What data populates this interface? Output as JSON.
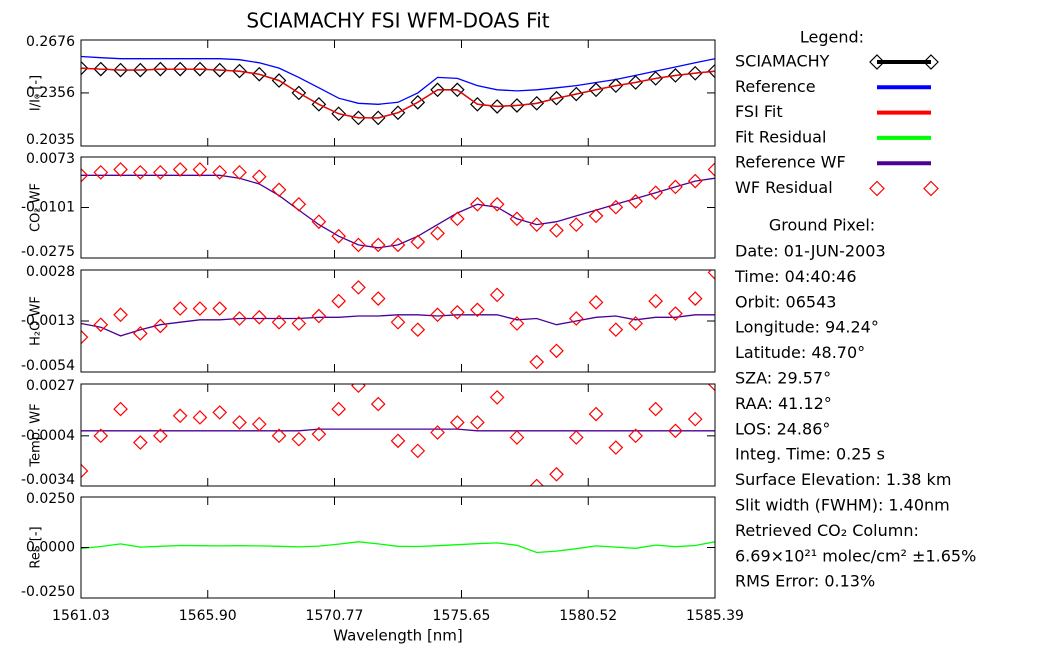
{
  "title": "SCIAMACHY FSI WFM-DOAS Fit",
  "legend": {
    "title": "Legend:",
    "entries": [
      {
        "name": "SCIAMACHY",
        "color": "#000000",
        "marker": "diamond-line"
      },
      {
        "name": "Reference",
        "color": "#0000ff",
        "marker": "line"
      },
      {
        "name": "FSI Fit",
        "color": "#ff0000",
        "marker": "line"
      },
      {
        "name": "Fit Residual",
        "color": "#00ff00",
        "marker": "line"
      },
      {
        "name": "Reference WF",
        "color": "#4b0096",
        "marker": "line"
      },
      {
        "name": "WF Residual",
        "color": "#ff0000",
        "marker": "diamonds"
      }
    ]
  },
  "info": {
    "title": "Ground Pixel:",
    "lines": [
      "Date: 01-JUN-2003",
      "Time: 04:40:46",
      "Orbit: 06543",
      "Longitude: 94.24°",
      "Latitude: 48.70°",
      "SZA: 29.57°",
      "RAA: 41.12°",
      "LOS: 24.86°",
      "Integ. Time: 0.25 s",
      "Surface Elevation: 1.38 km",
      "Slit width (FWHM): 1.40nm",
      "Retrieved CO₂ Column:",
      "6.69×10²¹ molec/cm² ±1.65%",
      "RMS Error: 0.13%"
    ]
  },
  "chart_data": [
    {
      "type": "line",
      "ylabel": "I/I₀ [-]",
      "xlim": [
        1561.03,
        1585.39
      ],
      "ylim": [
        0.2035,
        0.2676
      ],
      "yticks": [
        0.2035,
        0.2356,
        0.2676
      ],
      "x": [
        1561.03,
        1561.79,
        1562.55,
        1563.31,
        1564.08,
        1564.84,
        1565.6,
        1566.36,
        1567.12,
        1567.88,
        1568.64,
        1569.4,
        1570.17,
        1570.93,
        1571.69,
        1572.45,
        1573.21,
        1573.97,
        1574.73,
        1575.49,
        1576.26,
        1577.02,
        1577.78,
        1578.54,
        1579.3,
        1580.06,
        1580.82,
        1581.58,
        1582.34,
        1583.11,
        1583.87,
        1584.63,
        1585.39
      ],
      "series": [
        {
          "color": "#0000ff",
          "line": true,
          "values": [
            0.2576,
            0.2569,
            0.2563,
            0.2563,
            0.2563,
            0.2563,
            0.2563,
            0.2563,
            0.2557,
            0.2538,
            0.2506,
            0.245,
            0.2387,
            0.2324,
            0.2293,
            0.2287,
            0.2299,
            0.2356,
            0.245,
            0.2444,
            0.24,
            0.2375,
            0.2368,
            0.2375,
            0.2387,
            0.24,
            0.2419,
            0.2437,
            0.2462,
            0.2488,
            0.2513,
            0.2538,
            0.2563
          ]
        },
        {
          "color": "#000000",
          "line": true,
          "marker": "diamond",
          "values": [
            0.2506,
            0.25,
            0.2494,
            0.2494,
            0.25,
            0.25,
            0.25,
            0.2494,
            0.2488,
            0.2469,
            0.2431,
            0.2356,
            0.2287,
            0.223,
            0.2205,
            0.2205,
            0.2236,
            0.2299,
            0.2375,
            0.2375,
            0.2287,
            0.2274,
            0.228,
            0.2293,
            0.2324,
            0.2349,
            0.2375,
            0.24,
            0.2419,
            0.2444,
            0.2462,
            0.2475,
            0.2488
          ]
        },
        {
          "color": "#ff0000",
          "line": true,
          "values": [
            0.2505,
            0.25,
            0.2495,
            0.2495,
            0.2499,
            0.25,
            0.2499,
            0.2495,
            0.2487,
            0.2468,
            0.243,
            0.2357,
            0.2286,
            0.2231,
            0.2206,
            0.2204,
            0.2237,
            0.23,
            0.2374,
            0.2373,
            0.2288,
            0.2275,
            0.2281,
            0.2292,
            0.2323,
            0.235,
            0.2376,
            0.2399,
            0.242,
            0.2443,
            0.2461,
            0.2476,
            0.2487
          ]
        }
      ]
    },
    {
      "type": "line",
      "ylabel": "CO₂ WF",
      "xlim": [
        1561.03,
        1585.39
      ],
      "ylim": [
        -0.0275,
        0.0073
      ],
      "yticks": [
        -0.0275,
        -0.0101,
        0.0073
      ],
      "x": [
        1561.03,
        1561.79,
        1562.55,
        1563.31,
        1564.08,
        1564.84,
        1565.6,
        1566.36,
        1567.12,
        1567.88,
        1568.64,
        1569.4,
        1570.17,
        1570.93,
        1571.69,
        1572.45,
        1573.21,
        1573.97,
        1574.73,
        1575.49,
        1576.26,
        1577.02,
        1577.78,
        1578.54,
        1579.3,
        1580.06,
        1580.82,
        1581.58,
        1582.34,
        1583.11,
        1583.87,
        1584.63,
        1585.39
      ],
      "series": [
        {
          "color": "#4b0096",
          "line": true,
          "values": [
            0.001,
            0.001,
            0.001,
            0.001,
            0.001,
            0.001,
            0.001,
            0.001,
            0.0,
            -0.002,
            -0.006,
            -0.011,
            -0.016,
            -0.02,
            -0.023,
            -0.024,
            -0.023,
            -0.02,
            -0.016,
            -0.012,
            -0.009,
            -0.01,
            -0.014,
            -0.016,
            -0.015,
            -0.013,
            -0.011,
            -0.009,
            -0.007,
            -0.005,
            -0.003,
            -0.001,
            0.0
          ]
        },
        {
          "color": "#ff0000",
          "marker": "diamond",
          "values": [
            0.001,
            0.002,
            0.003,
            0.002,
            0.002,
            0.003,
            0.003,
            0.002,
            0.002,
            0.0005,
            -0.004,
            -0.009,
            -0.015,
            -0.02,
            -0.023,
            -0.023,
            -0.023,
            -0.022,
            -0.019,
            -0.014,
            -0.009,
            -0.009,
            -0.014,
            -0.016,
            -0.018,
            -0.016,
            -0.013,
            -0.01,
            -0.008,
            -0.005,
            -0.003,
            -0.001,
            0.003
          ]
        }
      ]
    },
    {
      "type": "line",
      "ylabel": "H₂O WF",
      "xlim": [
        1561.03,
        1585.39
      ],
      "ylim": [
        -0.0054,
        0.0028
      ],
      "yticks": [
        -0.0054,
        -0.0013,
        0.0028
      ],
      "x": [
        1561.03,
        1561.79,
        1562.55,
        1563.31,
        1564.08,
        1564.84,
        1565.6,
        1566.36,
        1567.12,
        1567.88,
        1568.64,
        1569.4,
        1570.17,
        1570.93,
        1571.69,
        1572.45,
        1573.21,
        1573.97,
        1574.73,
        1575.49,
        1576.26,
        1577.02,
        1577.78,
        1578.54,
        1579.3,
        1580.06,
        1580.82,
        1581.58,
        1582.34,
        1583.11,
        1583.87,
        1584.63,
        1585.39
      ],
      "series": [
        {
          "color": "#4b0096",
          "line": true,
          "values": [
            -0.0015,
            -0.0018,
            -0.0025,
            -0.002,
            -0.0016,
            -0.0014,
            -0.0012,
            -0.0012,
            -0.0011,
            -0.0011,
            -0.0011,
            -0.0011,
            -0.001,
            -0.001,
            -0.0009,
            -0.0009,
            -0.0008,
            -0.0008,
            -0.0009,
            -0.0008,
            -0.0008,
            -0.0008,
            -0.0012,
            -0.0011,
            -0.0016,
            -0.0013,
            -0.001,
            -0.0009,
            -0.0012,
            -0.001,
            -0.001,
            -0.0008,
            -0.0008
          ]
        },
        {
          "color": "#ff0000",
          "marker": "diamond",
          "values": [
            -0.0026,
            -0.0016,
            -0.0008,
            -0.0023,
            -0.0017,
            -0.0003,
            -0.0003,
            -0.0003,
            -0.0011,
            -0.001,
            -0.0014,
            -0.0015,
            -0.0009,
            0.0003,
            0.0014,
            0.0005,
            -0.0014,
            -0.002,
            -0.0008,
            -0.0006,
            -0.0004,
            0.0008,
            -0.0015,
            -0.0046,
            -0.0037,
            -0.0011,
            0.0002,
            -0.002,
            -0.0015,
            0.0003,
            -0.0007,
            0.0005,
            0.0026
          ]
        }
      ]
    },
    {
      "type": "line",
      "ylabel": "Temp. WF",
      "xlim": [
        1561.03,
        1585.39
      ],
      "ylim": [
        -0.0034,
        0.0027
      ],
      "yticks": [
        -0.0034,
        -0.0004,
        0.0027
      ],
      "x": [
        1561.03,
        1561.79,
        1562.55,
        1563.31,
        1564.08,
        1564.84,
        1565.6,
        1566.36,
        1567.12,
        1567.88,
        1568.64,
        1569.4,
        1570.17,
        1570.93,
        1571.69,
        1572.45,
        1573.21,
        1573.97,
        1574.73,
        1575.49,
        1576.26,
        1577.02,
        1577.78,
        1578.54,
        1579.3,
        1580.06,
        1580.82,
        1581.58,
        1582.34,
        1583.11,
        1583.87,
        1584.63,
        1585.39
      ],
      "series": [
        {
          "color": "#4b0096",
          "line": true,
          "values": [
            -0.0001,
            -0.0001,
            -0.0001,
            -0.0001,
            -0.0001,
            -0.0001,
            -0.0001,
            -0.0001,
            -0.0001,
            -0.0001,
            -0.0001,
            -0.0001,
            0.0,
            0.0,
            0.0,
            0.0,
            0.0,
            0.0,
            0.0,
            0.0,
            -0.0001,
            -0.0001,
            -0.0001,
            -0.0001,
            -0.0001,
            -0.0001,
            -0.0001,
            -0.0001,
            -0.0001,
            -0.0001,
            -0.0001,
            -0.0001,
            -0.0001
          ]
        },
        {
          "color": "#ff0000",
          "marker": "diamond",
          "values": [
            -0.0025,
            -0.0004,
            0.0012,
            -0.0008,
            -0.0004,
            0.0008,
            0.0007,
            0.001,
            0.0004,
            0.0003,
            -0.0004,
            -0.0006,
            -0.0003,
            0.0012,
            0.0026,
            0.0015,
            -0.0007,
            -0.0013,
            -0.0002,
            0.0004,
            0.0004,
            0.0019,
            -0.0005,
            -0.0034,
            -0.0027,
            -0.0005,
            0.0009,
            -0.0011,
            -0.0004,
            0.0012,
            -0.0001,
            0.0006,
            0.0027
          ]
        }
      ]
    },
    {
      "type": "line",
      "ylabel": "Res [-]",
      "xlabel": "Wavelength [nm]",
      "xlim": [
        1561.03,
        1585.39
      ],
      "ylim": [
        -0.025,
        0.025
      ],
      "yticks": [
        {
          "value": -0.025,
          "label": "-0.0250"
        },
        {
          "value": 0,
          "label": "0.0000"
        },
        {
          "value": 0.025,
          "label": "0.0250"
        }
      ],
      "xticks": [
        1561.03,
        {
          "value": 1565.9,
          "label": "1565.90"
        },
        1570.77,
        1575.65,
        1580.52,
        1585.39
      ],
      "x": [
        1561.03,
        1561.79,
        1562.55,
        1563.31,
        1564.08,
        1564.84,
        1565.6,
        1566.36,
        1567.12,
        1567.88,
        1568.64,
        1569.4,
        1570.17,
        1570.93,
        1571.69,
        1572.45,
        1573.21,
        1573.97,
        1574.73,
        1575.49,
        1576.26,
        1577.02,
        1577.78,
        1578.54,
        1579.3,
        1580.06,
        1580.82,
        1581.58,
        1582.34,
        1583.11,
        1583.87,
        1584.63,
        1585.39
      ],
      "series": [
        {
          "color": "#00ff00",
          "line": true,
          "values": [
            -0.0005,
            0.0005,
            0.0018,
            0.0002,
            0.0006,
            0.001,
            0.0009,
            0.0008,
            0.0009,
            0.0008,
            0.0006,
            0.0003,
            0.0007,
            0.0017,
            0.0028,
            0.0018,
            0.0006,
            0.0005,
            0.0009,
            0.0014,
            0.0019,
            0.0023,
            0.0011,
            -0.0025,
            -0.0018,
            -0.0006,
            0.0008,
            0.0002,
            -0.0004,
            0.0012,
            0.0004,
            0.001,
            0.0028
          ]
        }
      ]
    }
  ]
}
